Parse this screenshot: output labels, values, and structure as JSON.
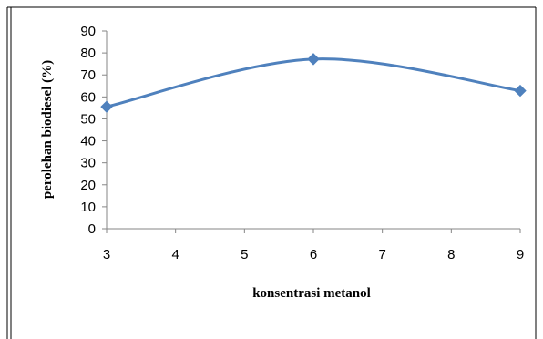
{
  "chart_data": {
    "type": "line",
    "title": "",
    "xlabel": "konsentrasi metanol",
    "ylabel": "perolehan biodiesel (%)",
    "x_ticks": [
      3,
      4,
      5,
      6,
      7,
      8,
      9
    ],
    "y_ticks": [
      0,
      10,
      20,
      30,
      40,
      50,
      60,
      70,
      80,
      90
    ],
    "xlim": [
      3,
      9
    ],
    "ylim": [
      0,
      90
    ],
    "grid": false,
    "smooth": true,
    "marker": "diamond",
    "series": [
      {
        "x": [
          3,
          6,
          9
        ],
        "y": [
          55.5,
          77.2,
          62.8
        ],
        "color": "#4F81BD"
      }
    ]
  }
}
